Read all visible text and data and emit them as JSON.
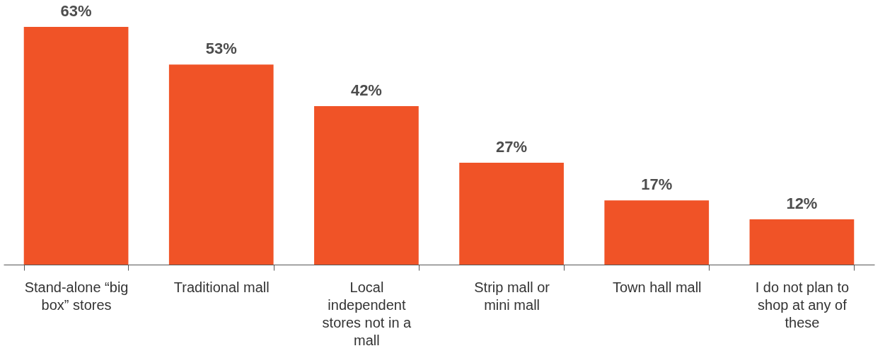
{
  "chart_data": {
    "type": "bar",
    "categories": [
      "Stand-alone “big box” stores",
      "Traditional mall",
      "Local independent stores not in a mall",
      "Strip mall or mini mall",
      "Town hall mall",
      "I do not plan to shop at any of these"
    ],
    "values": [
      63,
      53,
      42,
      27,
      17,
      12
    ],
    "color": "#f05327",
    "value_labels": [
      "63%",
      "53%",
      "42%",
      "27%",
      "17%",
      "12%"
    ]
  }
}
